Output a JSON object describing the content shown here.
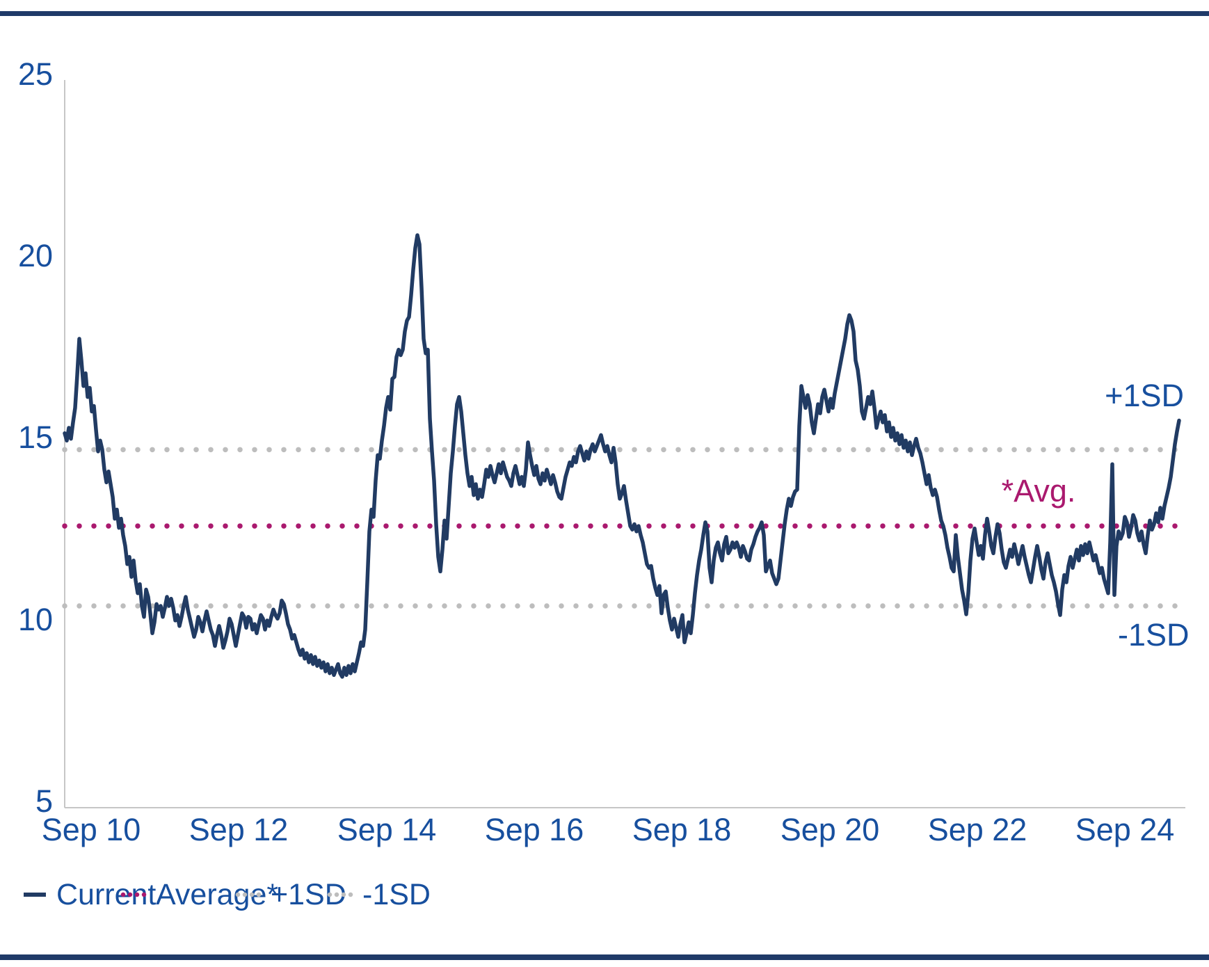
{
  "page": {
    "background": "#ffffff",
    "top_rule_color": "#1f3a68",
    "bottom_rule_color": "#1f3a68",
    "axis_line_color": "#c6c6c6",
    "axis_text_color": "#174f9e"
  },
  "chart_data": {
    "type": "line",
    "title": "",
    "xlabel": "",
    "ylabel": "",
    "ylim": [
      5,
      25
    ],
    "y_ticks": [
      25,
      20,
      15,
      10,
      5
    ],
    "y_tick_labels": [
      "25",
      "20",
      "15",
      "10",
      "5"
    ],
    "x_tick_labels": [
      "Sep 10",
      "Sep 12",
      "Sep 14",
      "Sep 16",
      "Sep 18",
      "Sep 20",
      "Sep 22",
      "Sep 24"
    ],
    "x_tick_interval_years": 2,
    "grid": "off",
    "legend_position": "bottom-left",
    "sampling_note": "Current series sampled evenly (~10 days per sample), starting ~0.36 years before the Sep 10 tick and ending ~0.73 years after the Sep 24 tick",
    "series": [
      {
        "name": "Current",
        "style": "solid",
        "color": "#213b63",
        "start_offset_years_vs_first_tick": -0.36,
        "step_years": 0.02826,
        "values": [
          15.3,
          15.1,
          15.45,
          15.15,
          15.6,
          16.0,
          16.9,
          17.9,
          17.3,
          16.6,
          16.95,
          16.3,
          16.55,
          15.9,
          16.05,
          15.4,
          14.8,
          15.1,
          14.85,
          14.3,
          13.95,
          14.25,
          13.9,
          13.55,
          12.95,
          13.2,
          12.7,
          12.95,
          12.5,
          12.2,
          11.7,
          11.9,
          11.35,
          11.8,
          11.25,
          10.9,
          11.15,
          10.55,
          10.25,
          11.0,
          10.8,
          10.35,
          9.8,
          10.1,
          10.6,
          10.45,
          10.55,
          10.25,
          10.5,
          10.8,
          10.55,
          10.75,
          10.5,
          10.15,
          10.3,
          10.0,
          10.25,
          10.55,
          10.8,
          10.45,
          10.2,
          9.95,
          9.7,
          9.9,
          10.25,
          10.1,
          9.85,
          10.15,
          10.4,
          10.15,
          9.9,
          9.75,
          9.45,
          9.75,
          10.0,
          9.75,
          9.4,
          9.6,
          9.85,
          10.2,
          10.05,
          9.75,
          9.45,
          9.75,
          10.05,
          10.35,
          10.25,
          9.95,
          10.25,
          10.2,
          9.9,
          10.05,
          9.8,
          10.05,
          10.3,
          10.2,
          9.9,
          10.15,
          10.0,
          10.25,
          10.45,
          10.3,
          10.2,
          10.35,
          10.7,
          10.6,
          10.35,
          10.05,
          9.9,
          9.65,
          9.75,
          9.55,
          9.35,
          9.2,
          9.35,
          9.1,
          9.25,
          9.0,
          9.2,
          8.95,
          9.15,
          8.9,
          9.05,
          8.85,
          9.0,
          8.75,
          8.95,
          8.7,
          8.85,
          8.65,
          8.8,
          8.95,
          8.7,
          8.6,
          8.85,
          8.65,
          8.9,
          8.7,
          8.95,
          8.75,
          9.0,
          9.25,
          9.55,
          9.45,
          9.9,
          11.2,
          12.6,
          13.2,
          13.0,
          14.0,
          14.7,
          14.6,
          15.1,
          15.5,
          16.0,
          16.3,
          15.95,
          16.8,
          16.85,
          17.4,
          17.6,
          17.45,
          17.6,
          18.1,
          18.4,
          18.5,
          19.1,
          19.8,
          20.4,
          20.75,
          20.5,
          19.3,
          17.9,
          17.5,
          17.6,
          15.7,
          14.8,
          14.0,
          12.8,
          11.9,
          11.5,
          12.1,
          12.9,
          12.4,
          13.3,
          14.2,
          14.8,
          15.5,
          16.1,
          16.3,
          15.9,
          15.3,
          14.7,
          14.2,
          13.85,
          14.1,
          13.6,
          13.9,
          13.5,
          13.75,
          13.55,
          13.9,
          14.3,
          14.1,
          14.4,
          14.15,
          13.95,
          14.2,
          14.45,
          14.2,
          14.5,
          14.3,
          14.1,
          14.0,
          13.85,
          14.2,
          14.4,
          14.15,
          13.9,
          14.1,
          13.85,
          14.3,
          15.05,
          14.7,
          14.4,
          14.15,
          14.4,
          14.05,
          13.9,
          14.2,
          14.0,
          14.3,
          14.1,
          13.9,
          14.15,
          13.95,
          13.7,
          13.55,
          13.5,
          13.8,
          14.1,
          14.3,
          14.5,
          14.4,
          14.65,
          14.5,
          14.8,
          14.95,
          14.75,
          14.55,
          14.8,
          14.6,
          14.85,
          15.0,
          14.8,
          14.95,
          15.1,
          15.25,
          15.0,
          14.8,
          14.95,
          14.7,
          14.5,
          14.9,
          14.5,
          13.9,
          13.5,
          13.65,
          13.85,
          13.45,
          13.1,
          12.75,
          12.65,
          12.8,
          12.6,
          12.75,
          12.5,
          12.3,
          12.0,
          11.7,
          11.6,
          11.65,
          11.3,
          11.05,
          10.85,
          11.1,
          10.35,
          10.85,
          10.95,
          10.5,
          10.15,
          9.9,
          10.2,
          9.95,
          9.7,
          10.05,
          10.3,
          9.55,
          9.8,
          10.1,
          9.8,
          10.3,
          10.9,
          11.4,
          11.8,
          12.1,
          12.5,
          12.85,
          12.6,
          11.6,
          11.2,
          11.8,
          12.15,
          12.3,
          12.0,
          11.8,
          12.25,
          12.45,
          12.0,
          12.1,
          12.3,
          12.15,
          12.3,
          12.15,
          11.9,
          12.2,
          12.05,
          11.85,
          11.8,
          12.1,
          12.25,
          12.45,
          12.6,
          12.7,
          12.85,
          12.5,
          11.5,
          11.65,
          11.8,
          11.45,
          11.3,
          11.15,
          11.3,
          11.8,
          12.3,
          12.8,
          13.2,
          13.5,
          13.3,
          13.55,
          13.7,
          13.75,
          15.5,
          16.6,
          16.3,
          16.0,
          16.35,
          16.1,
          15.6,
          15.3,
          15.7,
          16.1,
          15.85,
          16.3,
          16.5,
          16.2,
          15.9,
          16.25,
          16.0,
          16.4,
          16.7,
          17.0,
          17.3,
          17.6,
          17.9,
          18.3,
          18.55,
          18.4,
          18.1,
          17.3,
          17.05,
          16.6,
          15.9,
          15.7,
          16.0,
          16.3,
          16.1,
          16.45,
          16.0,
          15.45,
          15.7,
          15.9,
          15.6,
          15.8,
          15.35,
          15.6,
          15.2,
          15.45,
          15.1,
          15.3,
          15.0,
          15.25,
          14.9,
          15.1,
          14.8,
          15.05,
          14.7,
          14.95,
          15.15,
          14.9,
          14.75,
          14.5,
          14.2,
          13.9,
          14.15,
          13.8,
          13.6,
          13.75,
          13.55,
          13.2,
          12.9,
          12.75,
          12.5,
          12.15,
          11.9,
          11.6,
          11.5,
          12.5,
          11.9,
          11.45,
          11.0,
          10.7,
          10.32,
          10.9,
          11.8,
          12.4,
          12.68,
          12.3,
          11.95,
          12.2,
          11.85,
          12.5,
          12.95,
          12.6,
          12.2,
          12.0,
          12.45,
          12.8,
          12.55,
          12.1,
          11.75,
          11.6,
          11.85,
          12.1,
          11.9,
          12.25,
          12.0,
          11.7,
          11.95,
          12.2,
          11.9,
          11.65,
          11.4,
          11.2,
          11.55,
          11.9,
          12.2,
          11.9,
          11.55,
          11.3,
          11.75,
          12.0,
          11.7,
          11.4,
          11.2,
          10.95,
          10.6,
          10.3,
          11.0,
          11.4,
          11.2,
          11.65,
          11.9,
          11.6,
          11.85,
          12.1,
          11.8,
          12.2,
          11.95,
          12.25,
          12.0,
          12.3,
          12.05,
          11.8,
          11.95,
          11.7,
          11.45,
          11.6,
          11.3,
          11.1,
          10.9,
          12.3,
          14.45,
          10.85,
          12.2,
          12.6,
          12.4,
          12.55,
          13.0,
          12.85,
          12.45,
          12.7,
          13.05,
          12.9,
          12.55,
          12.35,
          12.6,
          12.25,
          12.0,
          12.5,
          12.9,
          12.65,
          12.8,
          13.1,
          12.85,
          13.25,
          12.95,
          13.3,
          13.55,
          13.8,
          14.1,
          14.55,
          15.0,
          15.35,
          15.65
        ]
      }
    ],
    "reference_lines": [
      {
        "id": "plus1sd",
        "label": "+1SD",
        "value": 14.85,
        "style": "dotted",
        "color": "#bdbdbd"
      },
      {
        "id": "average",
        "label": "Average*",
        "value": 12.75,
        "style": "dotted",
        "color": "#aa196e"
      },
      {
        "id": "minus1sd",
        "label": "-1SD",
        "value": 10.55,
        "style": "dotted",
        "color": "#bdbdbd"
      }
    ],
    "annotations": [
      {
        "id": "plus1sd-label",
        "text": "+1SD",
        "color": "#174f9e"
      },
      {
        "id": "avg-label",
        "text": "*Avg.",
        "color": "#aa196e"
      },
      {
        "id": "minus1sd-label",
        "text": "-1SD",
        "color": "#174f9e"
      }
    ]
  },
  "legend": {
    "items": [
      {
        "id": "current",
        "label": "Current",
        "swatch": "solid-line",
        "color": "#213b63"
      },
      {
        "id": "average",
        "label": "Average*",
        "swatch": "dotted-line",
        "color": "#aa196e"
      },
      {
        "id": "plus1sd",
        "label": "+1SD",
        "swatch": "dotted-line",
        "color": "#bdbdbd"
      },
      {
        "id": "minus1sd",
        "label": "-1SD",
        "swatch": "dotted-line",
        "color": "#bdbdbd"
      }
    ],
    "text_color": "#174f9e"
  }
}
